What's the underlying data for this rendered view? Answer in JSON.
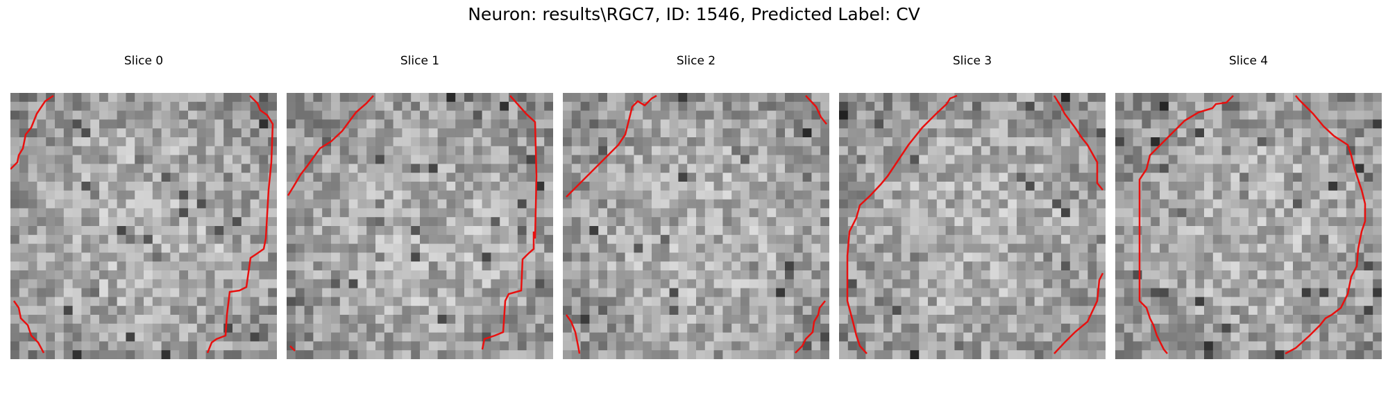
{
  "figure": {
    "title": "Neuron: results\\RGC7, ID: 1546, Predicted Label: CV"
  },
  "panels": [
    {
      "title": "Slice 0"
    },
    {
      "title": "Slice 1"
    },
    {
      "title": "Slice 2"
    },
    {
      "title": "Slice 3"
    },
    {
      "title": "Slice 4"
    }
  ],
  "colors": {
    "contour": "#e8100f",
    "background": "#ffffff",
    "colormap": "grayscale"
  }
}
